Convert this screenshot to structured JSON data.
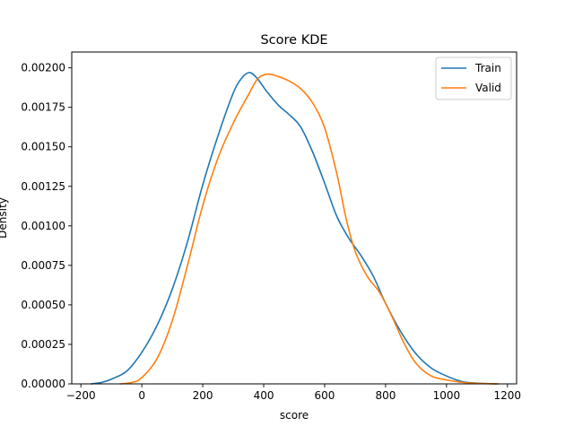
{
  "chart_data": {
    "type": "line",
    "title": "Score KDE",
    "xlabel": "score",
    "ylabel": "Density",
    "xlim": [
      -230,
      1230
    ],
    "ylim": [
      0,
      0.0021
    ],
    "xticks": [
      -200,
      0,
      200,
      400,
      600,
      800,
      1000,
      1200
    ],
    "xtick_labels": [
      "−200",
      "0",
      "200",
      "400",
      "600",
      "800",
      "1000",
      "1200"
    ],
    "yticks": [
      0,
      0.00025,
      0.0005,
      0.00075,
      0.001,
      0.00125,
      0.0015,
      0.00175,
      0.002
    ],
    "ytick_labels": [
      "0.00000",
      "0.00025",
      "0.00050",
      "0.00075",
      "0.00100",
      "0.00125",
      "0.00150",
      "0.00175",
      "0.00200"
    ],
    "grid": false,
    "legend_position": "upper right",
    "series": [
      {
        "name": "Train",
        "color": "#1f77b4",
        "points": [
          [
            -165,
            0.0
          ],
          [
            -130,
            1e-05
          ],
          [
            -100,
            3e-05
          ],
          [
            -50,
            8e-05
          ],
          [
            0,
            0.0002
          ],
          [
            50,
            0.00037
          ],
          [
            100,
            0.0006
          ],
          [
            150,
            0.0009
          ],
          [
            200,
            0.00126
          ],
          [
            250,
            0.00157
          ],
          [
            300,
            0.00184
          ],
          [
            330,
            0.00194
          ],
          [
            355,
            0.00197
          ],
          [
            380,
            0.00193
          ],
          [
            410,
            0.00185
          ],
          [
            450,
            0.00176
          ],
          [
            480,
            0.00171
          ],
          [
            520,
            0.00163
          ],
          [
            560,
            0.00147
          ],
          [
            600,
            0.00127
          ],
          [
            640,
            0.00106
          ],
          [
            680,
            0.00092
          ],
          [
            720,
            0.00081
          ],
          [
            760,
            0.00068
          ],
          [
            800,
            0.00051
          ],
          [
            850,
            0.00033
          ],
          [
            900,
            0.00019
          ],
          [
            950,
            0.0001
          ],
          [
            1000,
            5e-05
          ],
          [
            1050,
            1.5e-05
          ],
          [
            1100,
            5e-06
          ],
          [
            1165,
            0.0
          ]
        ]
      },
      {
        "name": "Valid",
        "color": "#ff7f0e",
        "points": [
          [
            -70,
            0.0
          ],
          [
            -30,
            1e-05
          ],
          [
            0,
            4e-05
          ],
          [
            50,
            0.00016
          ],
          [
            100,
            0.0004
          ],
          [
            150,
            0.00075
          ],
          [
            200,
            0.00113
          ],
          [
            250,
            0.00143
          ],
          [
            300,
            0.00165
          ],
          [
            350,
            0.00183
          ],
          [
            380,
            0.00193
          ],
          [
            410,
            0.00196
          ],
          [
            440,
            0.00195
          ],
          [
            480,
            0.00192
          ],
          [
            520,
            0.00187
          ],
          [
            560,
            0.00178
          ],
          [
            600,
            0.00162
          ],
          [
            640,
            0.00133
          ],
          [
            670,
            0.00105
          ],
          [
            700,
            0.00084
          ],
          [
            740,
            0.00068
          ],
          [
            780,
            0.00058
          ],
          [
            820,
            0.00043
          ],
          [
            860,
            0.00026
          ],
          [
            900,
            0.00013
          ],
          [
            950,
            5e-05
          ],
          [
            1000,
            2.5e-05
          ],
          [
            1050,
            1e-05
          ],
          [
            1100,
            3e-06
          ],
          [
            1170,
            0.0
          ]
        ]
      }
    ]
  }
}
